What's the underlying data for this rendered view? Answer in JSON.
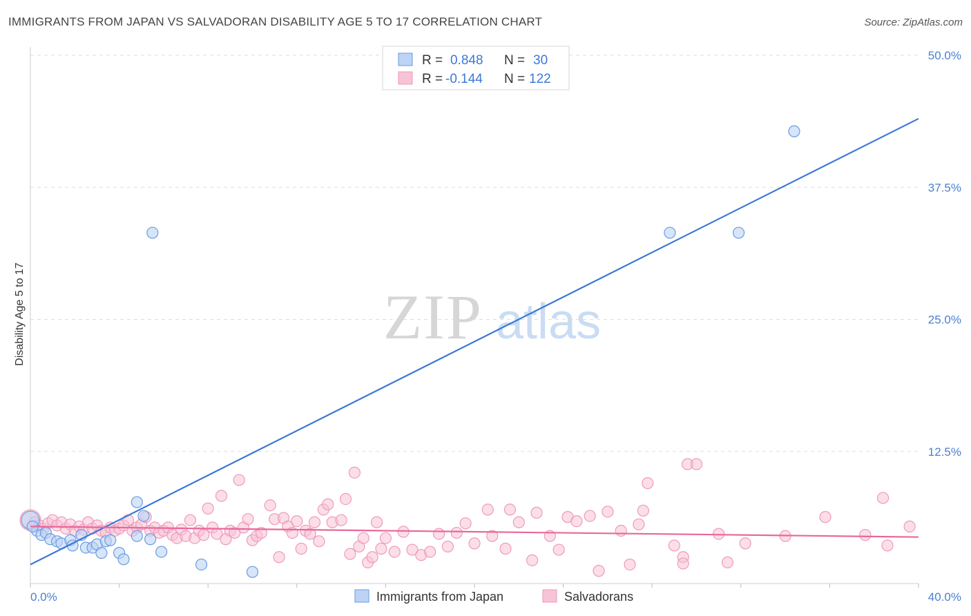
{
  "title": "IMMIGRANTS FROM JAPAN VS SALVADORAN DISABILITY AGE 5 TO 17 CORRELATION CHART",
  "source": "Source: ZipAtlas.com",
  "watermark": {
    "zip": "ZIP",
    "atlas": "atlas"
  },
  "colors": {
    "blue": "#3b78d8",
    "blue_fill": "#bcd3f5",
    "blue_stroke": "#6a9be0",
    "pink": "#e8679a",
    "pink_fill": "#f7c3d6",
    "pink_stroke": "#ef9ab9",
    "grid": "#dddddd",
    "tick": "#4a7fd0"
  },
  "legend": {
    "rows": [
      {
        "r_label": "R =",
        "r_value": "0.848",
        "n_label": "N =",
        "n_value": "30"
      },
      {
        "r_label": "R =",
        "r_value": "-0.144",
        "n_label": "N =",
        "n_value": "122"
      }
    ]
  },
  "bottom_legend": [
    "Immigrants from Japan",
    "Salvadorans"
  ],
  "chart_data": {
    "type": "scatter",
    "ylabel": "Disability Age 5 to 17",
    "xlabel": "",
    "xlim": [
      0,
      40
    ],
    "ylim": [
      0,
      50
    ],
    "x_tick_labels": [
      "0.0%",
      "40.0%"
    ],
    "y_ticks": [
      12.5,
      25.0,
      37.5,
      50.0
    ],
    "y_tick_labels": [
      "12.5%",
      "25.0%",
      "37.5%",
      "50.0%"
    ],
    "grid": true,
    "legend_position": "top-center",
    "series": [
      {
        "name": "Immigrants from Japan",
        "color": "#3b78d8",
        "trend": {
          "x": [
            0,
            40
          ],
          "y": [
            1.8,
            44.0
          ]
        },
        "points": [
          [
            0.0,
            6.0
          ],
          [
            0.3,
            5.0
          ],
          [
            0.5,
            4.6
          ],
          [
            0.7,
            4.8
          ],
          [
            0.9,
            4.2
          ],
          [
            1.2,
            4.0
          ],
          [
            1.4,
            3.8
          ],
          [
            1.8,
            4.1
          ],
          [
            1.9,
            3.6
          ],
          [
            2.3,
            4.6
          ],
          [
            2.5,
            3.4
          ],
          [
            2.8,
            3.4
          ],
          [
            3.0,
            3.7
          ],
          [
            3.2,
            2.9
          ],
          [
            3.4,
            4.0
          ],
          [
            3.6,
            4.1
          ],
          [
            4.0,
            2.9
          ],
          [
            4.2,
            2.3
          ],
          [
            4.8,
            4.5
          ],
          [
            4.8,
            7.7
          ],
          [
            5.1,
            6.4
          ],
          [
            5.4,
            4.2
          ],
          [
            5.5,
            33.2
          ],
          [
            5.9,
            3.0
          ],
          [
            7.7,
            1.8
          ],
          [
            10.0,
            1.1
          ],
          [
            28.8,
            33.2
          ],
          [
            31.9,
            33.2
          ],
          [
            34.4,
            42.8
          ],
          [
            0.1,
            5.4
          ]
        ]
      },
      {
        "name": "Salvadorans",
        "color": "#e8679a",
        "trend": {
          "x": [
            0,
            40
          ],
          "y": [
            5.4,
            4.4
          ]
        },
        "points": [
          [
            0.0,
            6.0
          ],
          [
            0.2,
            5.8
          ],
          [
            0.4,
            5.5
          ],
          [
            0.6,
            5.2
          ],
          [
            0.8,
            5.7
          ],
          [
            1.0,
            6.0
          ],
          [
            1.2,
            5.5
          ],
          [
            1.4,
            5.8
          ],
          [
            1.6,
            5.2
          ],
          [
            1.8,
            5.6
          ],
          [
            2.0,
            5.0
          ],
          [
            2.2,
            5.4
          ],
          [
            2.4,
            5.1
          ],
          [
            2.6,
            5.8
          ],
          [
            2.8,
            5.2
          ],
          [
            3.0,
            5.5
          ],
          [
            3.2,
            5.0
          ],
          [
            3.4,
            4.8
          ],
          [
            3.6,
            5.3
          ],
          [
            3.8,
            5.0
          ],
          [
            4.0,
            5.2
          ],
          [
            4.2,
            5.5
          ],
          [
            4.4,
            6.0
          ],
          [
            4.6,
            5.0
          ],
          [
            4.8,
            5.3
          ],
          [
            5.0,
            5.6
          ],
          [
            5.2,
            6.3
          ],
          [
            5.4,
            5.0
          ],
          [
            5.6,
            5.3
          ],
          [
            5.8,
            4.8
          ],
          [
            6.0,
            5.0
          ],
          [
            6.2,
            5.3
          ],
          [
            6.4,
            4.6
          ],
          [
            6.6,
            4.3
          ],
          [
            6.8,
            5.1
          ],
          [
            7.0,
            4.5
          ],
          [
            7.2,
            6.0
          ],
          [
            7.4,
            4.3
          ],
          [
            7.6,
            5.0
          ],
          [
            7.8,
            4.6
          ],
          [
            8.0,
            7.1
          ],
          [
            8.2,
            5.3
          ],
          [
            8.4,
            4.7
          ],
          [
            8.6,
            8.3
          ],
          [
            8.8,
            4.2
          ],
          [
            9.0,
            5.0
          ],
          [
            9.2,
            4.8
          ],
          [
            9.4,
            9.8
          ],
          [
            9.6,
            5.3
          ],
          [
            9.8,
            6.1
          ],
          [
            10.0,
            4.1
          ],
          [
            10.2,
            4.5
          ],
          [
            10.4,
            4.8
          ],
          [
            10.8,
            7.4
          ],
          [
            11.0,
            6.1
          ],
          [
            11.2,
            2.5
          ],
          [
            11.4,
            6.2
          ],
          [
            11.6,
            5.4
          ],
          [
            11.8,
            4.8
          ],
          [
            12.0,
            5.9
          ],
          [
            12.2,
            3.3
          ],
          [
            12.4,
            5.0
          ],
          [
            12.6,
            4.7
          ],
          [
            12.8,
            5.8
          ],
          [
            13.0,
            4.0
          ],
          [
            13.2,
            7.0
          ],
          [
            13.4,
            7.5
          ],
          [
            13.6,
            5.8
          ],
          [
            14.0,
            6.0
          ],
          [
            14.2,
            8.0
          ],
          [
            14.4,
            2.8
          ],
          [
            14.6,
            10.5
          ],
          [
            14.8,
            3.5
          ],
          [
            15.0,
            4.3
          ],
          [
            15.2,
            2.0
          ],
          [
            15.4,
            2.5
          ],
          [
            15.6,
            5.8
          ],
          [
            15.8,
            3.3
          ],
          [
            16.0,
            4.3
          ],
          [
            16.4,
            3.0
          ],
          [
            16.8,
            4.9
          ],
          [
            17.2,
            3.2
          ],
          [
            17.6,
            2.7
          ],
          [
            18.0,
            3.0
          ],
          [
            18.4,
            4.7
          ],
          [
            18.8,
            3.5
          ],
          [
            19.2,
            4.8
          ],
          [
            19.6,
            5.7
          ],
          [
            20.0,
            3.8
          ],
          [
            20.6,
            7.0
          ],
          [
            20.8,
            4.5
          ],
          [
            21.4,
            3.3
          ],
          [
            21.6,
            7.0
          ],
          [
            22.0,
            5.8
          ],
          [
            22.6,
            2.2
          ],
          [
            22.8,
            6.7
          ],
          [
            23.4,
            4.5
          ],
          [
            23.8,
            3.2
          ],
          [
            24.2,
            6.3
          ],
          [
            24.6,
            5.9
          ],
          [
            25.2,
            6.4
          ],
          [
            25.6,
            1.2
          ],
          [
            26.0,
            6.8
          ],
          [
            26.6,
            5.0
          ],
          [
            27.0,
            1.8
          ],
          [
            27.4,
            5.6
          ],
          [
            27.6,
            6.9
          ],
          [
            27.8,
            9.5
          ],
          [
            29.0,
            3.6
          ],
          [
            29.4,
            2.5
          ],
          [
            29.6,
            11.3
          ],
          [
            31.0,
            4.7
          ],
          [
            31.4,
            2.0
          ],
          [
            32.2,
            3.8
          ],
          [
            34.0,
            4.5
          ],
          [
            35.8,
            6.3
          ],
          [
            37.6,
            4.6
          ],
          [
            38.4,
            8.1
          ],
          [
            38.6,
            3.6
          ],
          [
            39.6,
            5.4
          ],
          [
            29.4,
            1.9
          ],
          [
            30.0,
            11.3
          ]
        ]
      }
    ]
  }
}
